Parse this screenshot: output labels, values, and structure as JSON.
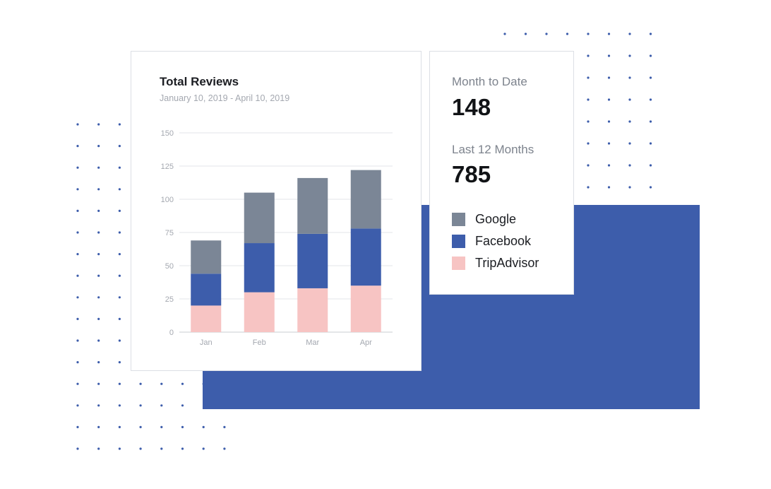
{
  "colors": {
    "google": "#7b8696",
    "facebook": "#3d5dab",
    "tripadvisor": "#f7c4c3",
    "accent_block": "#3d5dab",
    "dots": "#3d5dab"
  },
  "stats": {
    "month_to_date_label": "Month to Date",
    "month_to_date_value": "148",
    "last_12_months_label": "Last 12 Months",
    "last_12_months_value": "785"
  },
  "chart_data": {
    "type": "bar",
    "stacked": true,
    "title": "Total Reviews",
    "subtitle": "January 10, 2019 - April 10, 2019",
    "categories": [
      "Jan",
      "Feb",
      "Mar",
      "Apr"
    ],
    "ylim": [
      0,
      150
    ],
    "yticks": [
      "0",
      "25",
      "50",
      "75",
      "100",
      "125",
      "150"
    ],
    "grid": true,
    "legend_position": "right",
    "series": [
      {
        "name": "TripAdvisor",
        "color_key": "tripadvisor",
        "values": [
          20,
          30,
          33,
          35
        ]
      },
      {
        "name": "Facebook",
        "color_key": "facebook",
        "values": [
          24,
          37,
          41,
          43
        ]
      },
      {
        "name": "Google",
        "color_key": "google",
        "values": [
          25,
          38,
          42,
          44
        ]
      }
    ],
    "legend": [
      "Google",
      "Facebook",
      "TripAdvisor"
    ]
  }
}
